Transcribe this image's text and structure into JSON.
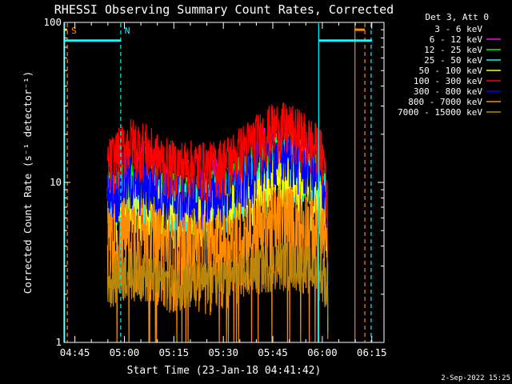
{
  "chart_data": {
    "type": "line",
    "title": "RHESSI Observing Summary Count Rates, Corrected",
    "xlabel": "Start Time (23-Jan-18 04:41:42)",
    "ylabel": "Corrected Count Rate (s⁻¹ detector⁻¹)",
    "x_ticks": [
      "04:45",
      "05:00",
      "05:15",
      "05:30",
      "05:45",
      "06:00",
      "06:15"
    ],
    "x_tick_minutes": [
      3.3,
      18.3,
      33.3,
      48.3,
      63.3,
      78.3,
      93.3
    ],
    "xlim_minutes": [
      0,
      97
    ],
    "y_scale": "log",
    "ylim": [
      1,
      100
    ],
    "y_ticks": [
      "1",
      "10",
      "100"
    ],
    "legend_header": "Det 3, Att 0",
    "grid": false,
    "series": [
      {
        "name": "3 - 6 keV",
        "color": "#000000",
        "x": [
          13.2,
          16,
          20,
          24,
          28,
          32,
          36,
          40,
          44,
          48,
          52,
          56,
          60,
          64,
          68,
          72,
          76,
          78,
          79.2,
          79.8,
          80
        ],
        "y": [
          11.5,
          13,
          15.5,
          15,
          13,
          11.5,
          11.8,
          11.5,
          11,
          12,
          13,
          15,
          17,
          18,
          17.5,
          16.5,
          14,
          12.5,
          11,
          6,
          2
        ]
      },
      {
        "name": "6 - 12 keV",
        "color": "#ff00ff",
        "x": [
          13.2,
          16,
          20,
          24,
          28,
          32,
          36,
          40,
          44,
          48,
          52,
          56,
          60,
          64,
          68,
          72,
          76,
          78,
          79.2,
          79.8,
          80
        ],
        "y": [
          10,
          11,
          13,
          12.5,
          11,
          10,
          10,
          10,
          9.5,
          10.5,
          11.5,
          13.5,
          15.5,
          17,
          16.5,
          15,
          12.5,
          11,
          9.5,
          5.5,
          1.8
        ]
      },
      {
        "name": "12 - 25 keV",
        "color": "#00ff00",
        "x": [
          13.2,
          16,
          20,
          24,
          28,
          32,
          36,
          40,
          44,
          48,
          52,
          56,
          60,
          64,
          68,
          72,
          76,
          78,
          79.2,
          79.8,
          80
        ],
        "y": [
          8.5,
          9,
          10,
          9.5,
          9,
          8.5,
          8.5,
          8.5,
          8.5,
          9,
          10,
          11.5,
          13.5,
          15,
          14.5,
          13,
          11,
          9.5,
          8.5,
          5,
          1.6
        ]
      },
      {
        "name": "25 - 50 keV",
        "color": "#00ffff",
        "x": [
          13.2,
          16,
          20,
          24,
          28,
          32,
          36,
          40,
          44,
          48,
          52,
          56,
          60,
          64,
          68,
          72,
          76,
          78,
          79.2,
          79.8,
          80
        ],
        "y": [
          8,
          8.5,
          9,
          8.5,
          8,
          7.5,
          7.5,
          7.5,
          7.5,
          8,
          9,
          10.5,
          12.5,
          14,
          13.5,
          12,
          10,
          9,
          8,
          4.8,
          1.5
        ]
      },
      {
        "name": "50 - 100 keV",
        "color": "#ffff00",
        "x": [
          13.2,
          16,
          20,
          24,
          28,
          32,
          36,
          40,
          44,
          48,
          52,
          56,
          60,
          64,
          68,
          72,
          76,
          78,
          79.2,
          79.8,
          80
        ],
        "y": [
          7,
          7,
          7.5,
          7,
          7,
          6.5,
          6.5,
          6.5,
          6.5,
          7,
          7.5,
          8.5,
          10,
          11,
          10.5,
          9.5,
          8,
          7.5,
          7,
          4.5,
          1.5
        ]
      },
      {
        "name": "100 - 300 keV",
        "color": "#ff0000",
        "x": [
          13.2,
          16,
          20,
          24,
          28,
          32,
          36,
          40,
          44,
          48,
          52,
          56,
          60,
          64,
          68,
          72,
          76,
          78,
          79.2,
          79.8,
          80
        ],
        "y": [
          13,
          15,
          18,
          17,
          14.5,
          13,
          13,
          13,
          12.5,
          13.5,
          15,
          17.5,
          20,
          22.5,
          22,
          20,
          17,
          15,
          13,
          7,
          2.2
        ]
      },
      {
        "name": "300 - 800 keV",
        "color": "#0000ff",
        "x": [
          13.2,
          16,
          20,
          24,
          28,
          32,
          36,
          40,
          44,
          48,
          52,
          56,
          60,
          64,
          68,
          72,
          76,
          78,
          79.2,
          79.8,
          80
        ],
        "y": [
          8,
          9,
          10.5,
          10,
          9,
          8,
          8,
          8,
          8,
          8.5,
          9.5,
          11.5,
          13.5,
          15.5,
          15,
          13.5,
          11.5,
          10,
          8.5,
          5,
          1.4
        ]
      },
      {
        "name": "800 - 7000 keV",
        "color": "#ff8c00",
        "x": [
          13.2,
          16,
          20,
          24,
          28,
          32,
          36,
          40,
          44,
          48,
          52,
          56,
          60,
          64,
          68,
          72,
          76,
          78,
          79.2,
          79.8,
          80
        ],
        "y": [
          4.5,
          4.8,
          5.2,
          5,
          4.4,
          4,
          4,
          4,
          3.8,
          4.2,
          4.5,
          5,
          5.5,
          6,
          6,
          5.8,
          5.3,
          5,
          4.5,
          3,
          1.8
        ]
      },
      {
        "name": "7000 - 15000 keV",
        "color": "#b8860b",
        "x": [
          13.2,
          16,
          20,
          24,
          28,
          32,
          36,
          40,
          44,
          48,
          52,
          56,
          60,
          64,
          68,
          72,
          76,
          78,
          79.2,
          79.8,
          80
        ],
        "y": [
          2.5,
          2.6,
          2.8,
          2.7,
          2.5,
          2.4,
          2.4,
          2.4,
          2.4,
          2.5,
          2.6,
          2.8,
          3,
          3.2,
          3.2,
          3.1,
          2.9,
          2.7,
          2.5,
          2,
          1.5
        ]
      }
    ],
    "annotations": [
      {
        "label": "S",
        "color": "#ff8c00",
        "x_min": 1.0
      },
      {
        "label": "N",
        "color": "#00ffff",
        "x_min": 17.2
      }
    ],
    "night_markers": [
      {
        "color": "#00ffff",
        "x_min": 0.2,
        "style": "solid"
      },
      {
        "color": "#00ffff",
        "x_min": 17.2,
        "style": "dashed"
      },
      {
        "color": "#00ffff",
        "x_min": 77.2,
        "style": "solid"
      },
      {
        "color": "#00ffff",
        "x_min": 93.1,
        "style": "dashed"
      }
    ],
    "saa_markers": [
      {
        "color": "#ff8c00",
        "x_min": 1.0,
        "style": "dashed"
      },
      {
        "color": "#ff8c00",
        "x_min": 88.2,
        "style": "solid"
      },
      {
        "color": "#ff8c00",
        "x_min": 91.2,
        "style": "dashed"
      }
    ],
    "night_bars": [
      {
        "color": "#00ffff",
        "x_start": 0.2,
        "x_end": 17.2,
        "y": 77
      },
      {
        "color": "#00ffff",
        "x_start": 77.2,
        "x_end": 93.4,
        "y": 77
      }
    ],
    "saa_bars": [
      {
        "color": "#ff8c00",
        "x_start": 0.2,
        "x_end": 1.0,
        "y": 90
      },
      {
        "color": "#ff8c00",
        "x_start": 88.2,
        "x_end": 91.2,
        "y": 90
      }
    ],
    "footer_date": "2-Sep-2022 15:25"
  }
}
